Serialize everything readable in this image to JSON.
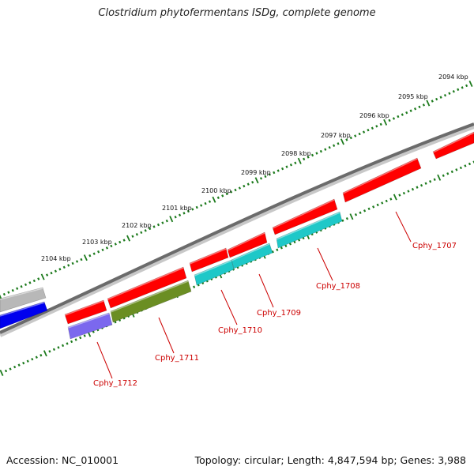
{
  "title": "Clostridium phytofermentans ISDg, complete genome",
  "footer": {
    "accession": "Accession: NC_010001",
    "topology": "Topology: circular; Length: 4,847,594 bp; Genes: 3,988"
  },
  "colors": {
    "backbone": "#6b6b6b",
    "tick": "#1c7a1c",
    "label": "#cc0000",
    "red": "#ff0000",
    "cyan": "#1ec8c8",
    "olive": "#6b8e23",
    "slate": "#7b68ee",
    "grey": "#b8b8b8",
    "blue": "#0000ee"
  },
  "scale_labels": [
    "2094 kbp",
    "2095 kbp",
    "2096 kbp",
    "2097 kbp",
    "2098 kbp",
    "2099 kbp",
    "2100 kbp",
    "2101 kbp",
    "2102 kbp",
    "2103 kbp",
    "2104 kbp"
  ],
  "gene_labels": [
    "Cphy_1707",
    "Cphy_1708",
    "Cphy_1709",
    "Cphy_1710",
    "Cphy_1711",
    "Cphy_1712"
  ]
}
